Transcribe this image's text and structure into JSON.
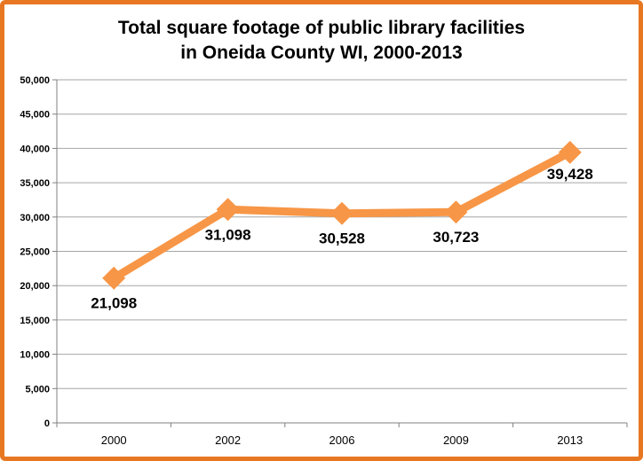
{
  "chart_data": {
    "type": "line",
    "title_lines": [
      "Total square footage of public library facilities",
      "in Oneida County WI, 2000-2013"
    ],
    "categories": [
      "2000",
      "2002",
      "2006",
      "2009",
      "2013"
    ],
    "series": [
      {
        "name": "Square footage",
        "values": [
          21098,
          31098,
          30528,
          30723,
          39428
        ]
      }
    ],
    "data_labels": [
      "21,098",
      "31,098",
      "30,528",
      "30,723",
      "39,428"
    ],
    "yticks": [
      "0",
      "5,000",
      "10,000",
      "15,000",
      "20,000",
      "25,000",
      "30,000",
      "35,000",
      "40,000",
      "45,000",
      "50,000"
    ],
    "ylim": [
      0,
      50000
    ],
    "grid": true,
    "legend": "none",
    "xlabel": "",
    "ylabel": ""
  },
  "colors": {
    "frame": "#e87722",
    "line": "#f79646",
    "grid": "#a6a6a6",
    "axis": "#808080"
  }
}
